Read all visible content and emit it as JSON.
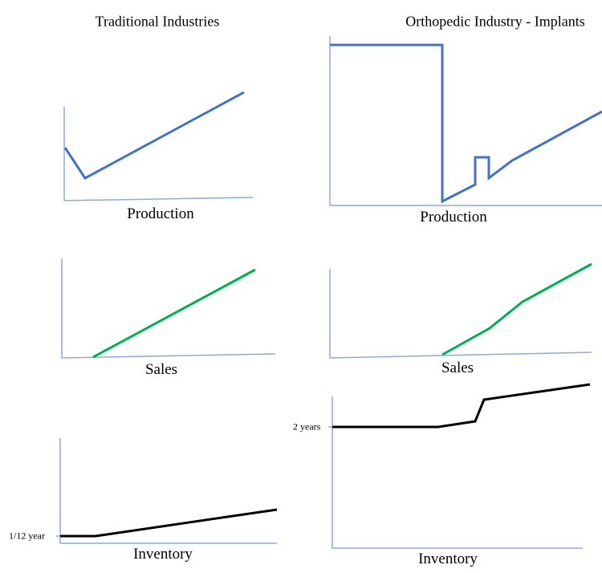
{
  "columns": [
    {
      "title": "Traditional Industries"
    },
    {
      "title": "Orthopedic Industry - Implants"
    }
  ],
  "panels": {
    "trad_production": {
      "label": "Production",
      "line_color": "#4472c4"
    },
    "trad_sales": {
      "label": "Sales",
      "line_color": "#00b050"
    },
    "trad_inventory": {
      "label": "Inventory",
      "line_color": "#000000",
      "tick_label": "1/12 year"
    },
    "ortho_production": {
      "label": "Production",
      "line_color": "#4472c4"
    },
    "ortho_sales": {
      "label": "Sales",
      "line_color": "#00b050"
    },
    "ortho_inventory": {
      "label": "Inventory",
      "line_color": "#000000",
      "tick_label": "2 years"
    }
  },
  "axis_color": "#8eaadb"
}
